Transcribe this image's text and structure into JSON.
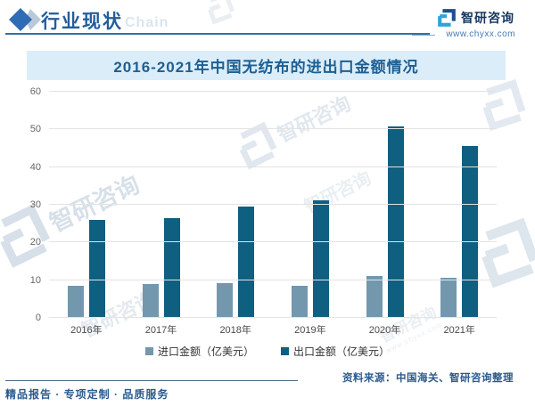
{
  "header": {
    "title": "行业现状",
    "chain_watermark": "Chain",
    "brand_name": "智研咨询",
    "brand_url": "www.chyxx.com"
  },
  "chart_data": {
    "type": "bar",
    "title": "2016-2021年中国无纺布的进出口金额情况",
    "categories": [
      "2016年",
      "2017年",
      "2018年",
      "2019年",
      "2020年",
      "2021年"
    ],
    "series": [
      {
        "name": "进口金额（亿美元）",
        "color": "#7397ad",
        "values": [
          8.4,
          9.0,
          9.2,
          8.4,
          11.1,
          10.7
        ]
      },
      {
        "name": "出口金额（亿美元）",
        "color": "#0f5f80",
        "values": [
          25.9,
          26.4,
          29.5,
          31.1,
          50.7,
          45.5
        ]
      }
    ],
    "ylim": [
      0,
      60
    ],
    "yticks": [
      0,
      10,
      20,
      30,
      40,
      50,
      60
    ],
    "grid": true,
    "legend_position": "bottom"
  },
  "footer": {
    "source": "资料来源：中国海关、智研咨询整理",
    "tagline": "精品报告 · 专项定制 · 品质服务"
  },
  "watermark": {
    "brand": "智研咨询",
    "url": "www.chyxx.com"
  },
  "colors": {
    "import_bar": "#7397ad",
    "export_bar": "#0f5f80",
    "title_band_bg": "#dbedf8",
    "accent_blue": "#235d9c"
  }
}
